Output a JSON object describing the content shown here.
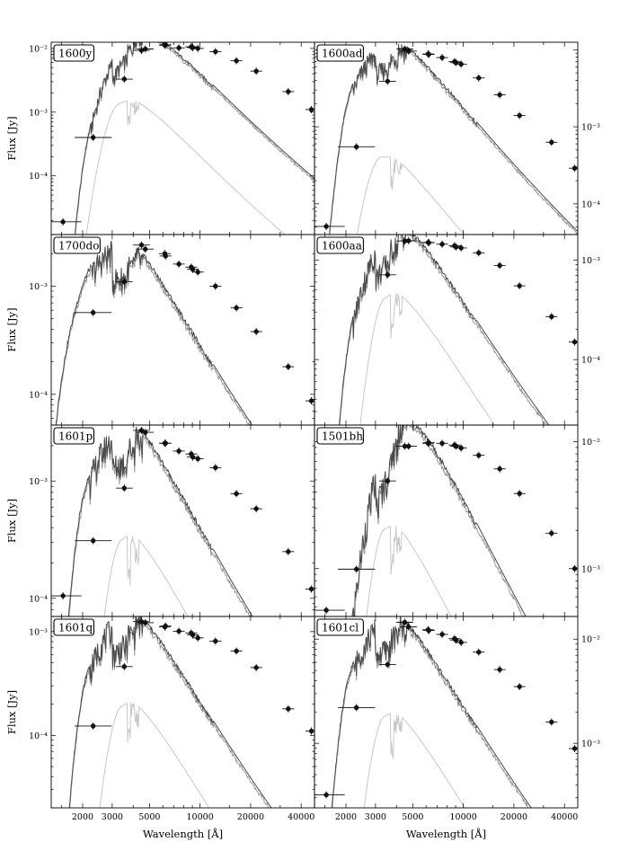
{
  "figure": {
    "ylabel": "Flux [Jy]",
    "xlabel": "Wavelength [Å]",
    "x_tick_labels": [
      "2000",
      "3000",
      "5000",
      "10000",
      "20000",
      "40000"
    ]
  },
  "colors": {
    "model_total": "#4a4a4a",
    "model_star": "#9a9a9a",
    "model_companion": "#c8c8c8",
    "points": "#111111"
  },
  "chart_data": [
    {
      "type": "scatter",
      "title": "1600y",
      "xscale": "log",
      "yscale": "log",
      "xlim": [
        1300,
        48000
      ],
      "ylim": [
        1.2e-05,
        0.0125
      ],
      "y_ticks": [
        0.0001,
        0.001,
        0.01
      ],
      "y_tick_labels": [
        "10⁻⁴",
        "10⁻³",
        "10⁻²"
      ],
      "y_tick_side": "left",
      "x": [
        1528,
        2310,
        3540,
        4480,
        4720,
        6170,
        6230,
        7480,
        8860,
        9050,
        9700,
        12350,
        16460,
        21600,
        33500,
        46000
      ],
      "values": [
        1.9e-05,
        0.0004,
        0.0033,
        0.0093,
        0.0098,
        0.0112,
        0.0114,
        0.0102,
        0.0106,
        0.0103,
        0.01,
        0.0089,
        0.0064,
        0.0044,
        0.0021,
        0.0011
      ],
      "series": [
        {
          "name": "",
          "peak_wavelength": 6500,
          "peak_flux": 0.0113,
          "uv_cutoff": 1700,
          "role": "total"
        },
        {
          "name": "",
          "peak_wavelength": 5000,
          "peak_flux": 0.00107,
          "uv_cutoff": 2600,
          "role": "companion"
        }
      ]
    },
    {
      "type": "scatter",
      "title": "1600ad",
      "xscale": "log",
      "yscale": "log",
      "xlim": [
        1300,
        48000
      ],
      "ylim": [
        4e-05,
        0.0125
      ],
      "y_ticks": [
        0.0001,
        0.001
      ],
      "y_tick_labels": [
        "10⁻⁴",
        "10⁻³"
      ],
      "y_tick_side": "right",
      "x": [
        1528,
        2310,
        3540,
        4480,
        4720,
        6170,
        6230,
        7480,
        8860,
        9050,
        9700,
        12350,
        16460,
        21600,
        33500,
        46000
      ],
      "values": [
        5.1e-05,
        0.00055,
        0.0039,
        0.0102,
        0.0096,
        0.0088,
        0.0087,
        0.0079,
        0.007,
        0.0068,
        0.0065,
        0.0043,
        0.0026,
        0.0014,
        0.00063,
        0.00029
      ],
      "series": [
        {
          "name": "",
          "peak_wavelength": 4900,
          "peak_flux": 0.0102,
          "uv_cutoff": 1700,
          "role": "total"
        },
        {
          "name": "",
          "peak_wavelength": 3900,
          "peak_flux": 0.00041,
          "uv_cutoff": 2600,
          "role": "companion"
        }
      ]
    },
    {
      "type": "scatter",
      "title": "1700do",
      "xscale": "log",
      "yscale": "log",
      "xlim": [
        1300,
        48000
      ],
      "ylim": [
        5.2e-05,
        0.003
      ],
      "y_ticks": [
        0.0001,
        0.001
      ],
      "y_tick_labels": [
        "10⁻⁴",
        "10⁻³"
      ],
      "y_tick_side": "left",
      "x": [
        2310,
        3540,
        4480,
        4720,
        6170,
        6230,
        7480,
        8860,
        9050,
        9700,
        12350,
        16460,
        21600,
        33500,
        46000
      ],
      "values": [
        0.00057,
        0.0011,
        0.0024,
        0.0022,
        0.002,
        0.0019,
        0.0016,
        0.0015,
        0.00143,
        0.00135,
        0.001,
        0.00063,
        0.00038,
        0.00018,
        8.7e-05
      ],
      "series": [
        {
          "name": "",
          "peak_wavelength": 4100,
          "peak_flux": 0.0026,
          "uv_cutoff": 1200,
          "role": "total"
        },
        {
          "name": "",
          "peak_wavelength": 1700,
          "peak_flux": 0.000145,
          "uv_cutoff": 900,
          "role": "companion"
        }
      ]
    },
    {
      "type": "scatter",
      "title": "1600aa",
      "xscale": "log",
      "yscale": "log",
      "xlim": [
        1300,
        48000
      ],
      "ylim": [
        2.2e-05,
        0.0018
      ],
      "y_ticks": [
        0.0001,
        0.001
      ],
      "y_tick_labels": [
        "10⁻⁴",
        "10⁻³"
      ],
      "y_tick_side": "right",
      "x": [
        3540,
        4480,
        4720,
        6170,
        6230,
        7480,
        8860,
        9050,
        9700,
        12350,
        16460,
        21600,
        33500,
        46000
      ],
      "values": [
        0.00071,
        0.00155,
        0.00156,
        0.0015,
        0.00149,
        0.00144,
        0.00139,
        0.00135,
        0.00132,
        0.00118,
        0.00088,
        0.00055,
        0.00027,
        0.00015
      ],
      "series": [
        {
          "name": "",
          "peak_wavelength": 5600,
          "peak_flux": 0.00155,
          "uv_cutoff": 1700,
          "role": "total"
        },
        {
          "name": "",
          "peak_wavelength": 5200,
          "peak_flux": 0.00031,
          "uv_cutoff": 2700,
          "role": "companion"
        }
      ]
    },
    {
      "type": "scatter",
      "title": "1601p",
      "xscale": "log",
      "yscale": "log",
      "xlim": [
        1300,
        48000
      ],
      "ylim": [
        7e-05,
        0.003
      ],
      "y_ticks": [
        0.0001,
        0.001
      ],
      "y_tick_labels": [
        "10⁻⁴",
        "10⁻³"
      ],
      "y_tick_side": "left",
      "x": [
        1528,
        2310,
        3540,
        4480,
        4720,
        6170,
        6230,
        7480,
        8860,
        9050,
        9700,
        12350,
        16460,
        21600,
        33500,
        46000
      ],
      "values": [
        0.000105,
        0.00031,
        0.00087,
        0.0027,
        0.0026,
        0.0021,
        0.0021,
        0.0018,
        0.0017,
        0.0016,
        0.00155,
        0.0013,
        0.00078,
        0.00058,
        0.00025,
        0.00012
      ],
      "series": [
        {
          "name": "",
          "peak_wavelength": 4600,
          "peak_flux": 0.0027,
          "uv_cutoff": 1600,
          "role": "total"
        },
        {
          "name": "",
          "peak_wavelength": 5000,
          "peak_flux": 0.00024,
          "uv_cutoff": 2700,
          "role": "companion"
        }
      ]
    },
    {
      "type": "scatter",
      "title": "1501bh",
      "xscale": "log",
      "yscale": "log",
      "xlim": [
        1300,
        48000
      ],
      "ylim": [
        0.00042,
        0.0135
      ],
      "y_ticks": [
        0.001,
        0.01
      ],
      "y_tick_labels": [
        "10⁻³",
        "10⁻²"
      ],
      "y_tick_side": "right",
      "x": [
        1528,
        2310,
        3540,
        4480,
        4720,
        6170,
        6230,
        7480,
        8860,
        9050,
        9700,
        12350,
        16460,
        21600,
        33500,
        46000
      ],
      "values": [
        0.00047,
        0.00099,
        0.0049,
        0.0092,
        0.0092,
        0.0097,
        0.0098,
        0.0097,
        0.0094,
        0.0092,
        0.0089,
        0.0078,
        0.0061,
        0.0039,
        0.0019,
        0.001
      ],
      "series": [
        {
          "name": "",
          "peak_wavelength": 6500,
          "peak_flux": 0.0098,
          "uv_cutoff": 1700,
          "role": "total"
        },
        {
          "name": "",
          "peak_wavelength": 4800,
          "peak_flux": 0.0016,
          "uv_cutoff": 2700,
          "role": "companion"
        }
      ]
    },
    {
      "type": "scatter",
      "title": "1601q",
      "xscale": "log",
      "yscale": "log",
      "xlim": [
        1300,
        48000
      ],
      "ylim": [
        2e-05,
        0.0014
      ],
      "y_ticks": [
        0.0001,
        0.001
      ],
      "y_tick_labels": [
        "10⁻⁴",
        "10⁻³"
      ],
      "y_tick_side": "left",
      "x": [
        2310,
        3540,
        4480,
        4720,
        6170,
        6230,
        7480,
        8860,
        9050,
        9700,
        12350,
        16460,
        21600,
        33500,
        46000
      ],
      "values": [
        0.000123,
        0.00046,
        0.00125,
        0.00122,
        0.00111,
        0.00113,
        0.00101,
        0.00097,
        0.00093,
        0.00087,
        0.00081,
        0.00065,
        0.00045,
        0.00018,
        0.00011
      ],
      "series": [
        {
          "name": "",
          "peak_wavelength": 4800,
          "peak_flux": 0.00128,
          "uv_cutoff": 1650,
          "role": "total"
        },
        {
          "name": "",
          "peak_wavelength": 5000,
          "peak_flux": 0.000145,
          "uv_cutoff": 2700,
          "role": "companion"
        }
      ]
    },
    {
      "type": "scatter",
      "title": "1601cl",
      "xscale": "log",
      "yscale": "log",
      "xlim": [
        1300,
        48000
      ],
      "ylim": [
        0.00024,
        0.0165
      ],
      "y_ticks": [
        0.001,
        0.01
      ],
      "y_tick_labels": [
        "10⁻³",
        "10⁻²"
      ],
      "y_tick_side": "right",
      "x": [
        1528,
        2310,
        3540,
        4480,
        4720,
        6170,
        6230,
        7480,
        8860,
        9050,
        9700,
        12350,
        16460,
        21600,
        33500,
        46000
      ],
      "values": [
        0.00032,
        0.0022,
        0.0057,
        0.0145,
        0.0131,
        0.0123,
        0.0121,
        0.0111,
        0.0101,
        0.0098,
        0.0093,
        0.0075,
        0.0051,
        0.0035,
        0.0016,
        0.00089
      ],
      "series": [
        {
          "name": "",
          "peak_wavelength": 4700,
          "peak_flux": 0.0145,
          "uv_cutoff": 1650,
          "role": "total"
        },
        {
          "name": "",
          "peak_wavelength": 4900,
          "peak_flux": 0.0014,
          "uv_cutoff": 2700,
          "role": "companion"
        }
      ]
    }
  ]
}
